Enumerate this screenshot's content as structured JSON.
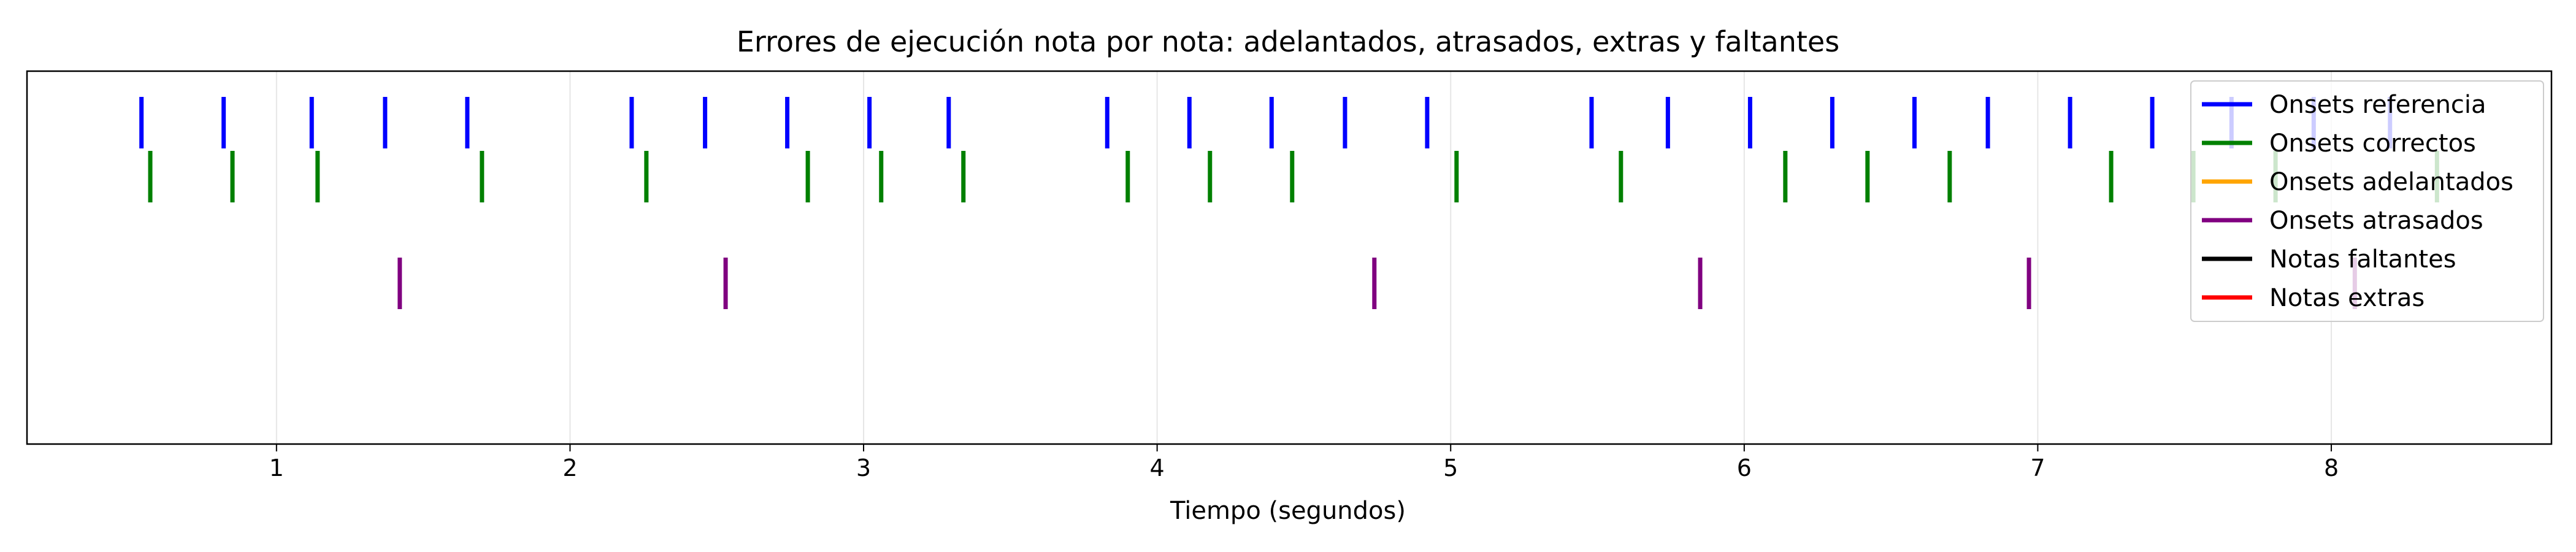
{
  "chart_data": {
    "type": "event-raster",
    "title": "Errores de ejecución nota por nota: adelantados, atrasados, extras y faltantes",
    "xlabel": "Tiempo (segundos)",
    "ylabel": "",
    "xlim": [
      0.15,
      8.75
    ],
    "xticks": [
      1,
      2,
      3,
      4,
      5,
      6,
      7,
      8
    ],
    "grid": "vertical",
    "legend_position": "top-right",
    "series": [
      {
        "name": "Onsets referencia",
        "color": "#0000ff",
        "values": [
          0.54,
          0.82,
          1.12,
          1.37,
          1.65,
          2.21,
          2.46,
          2.74,
          3.02,
          3.29,
          3.83,
          4.11,
          4.39,
          4.64,
          4.92,
          5.48,
          5.74,
          6.02,
          6.3,
          6.58,
          6.83,
          7.11,
          7.39,
          7.66,
          7.94,
          8.2
        ]
      },
      {
        "name": "Onsets correctos",
        "color": "#008000",
        "values": [
          0.57,
          0.85,
          1.14,
          1.7,
          2.26,
          2.81,
          3.06,
          3.34,
          3.9,
          4.18,
          4.46,
          5.02,
          5.58,
          6.14,
          6.42,
          6.7,
          7.25,
          7.53,
          7.81,
          8.36
        ]
      },
      {
        "name": "Onsets adelantados",
        "color": "#ffa500",
        "values": []
      },
      {
        "name": "Onsets atrasados",
        "color": "#800080",
        "values": [
          1.42,
          2.53,
          4.74,
          5.85,
          6.97,
          8.08
        ]
      },
      {
        "name": "Notas faltantes",
        "color": "#000000",
        "values": []
      },
      {
        "name": "Notas extras",
        "color": "#ff0000",
        "values": []
      }
    ]
  }
}
